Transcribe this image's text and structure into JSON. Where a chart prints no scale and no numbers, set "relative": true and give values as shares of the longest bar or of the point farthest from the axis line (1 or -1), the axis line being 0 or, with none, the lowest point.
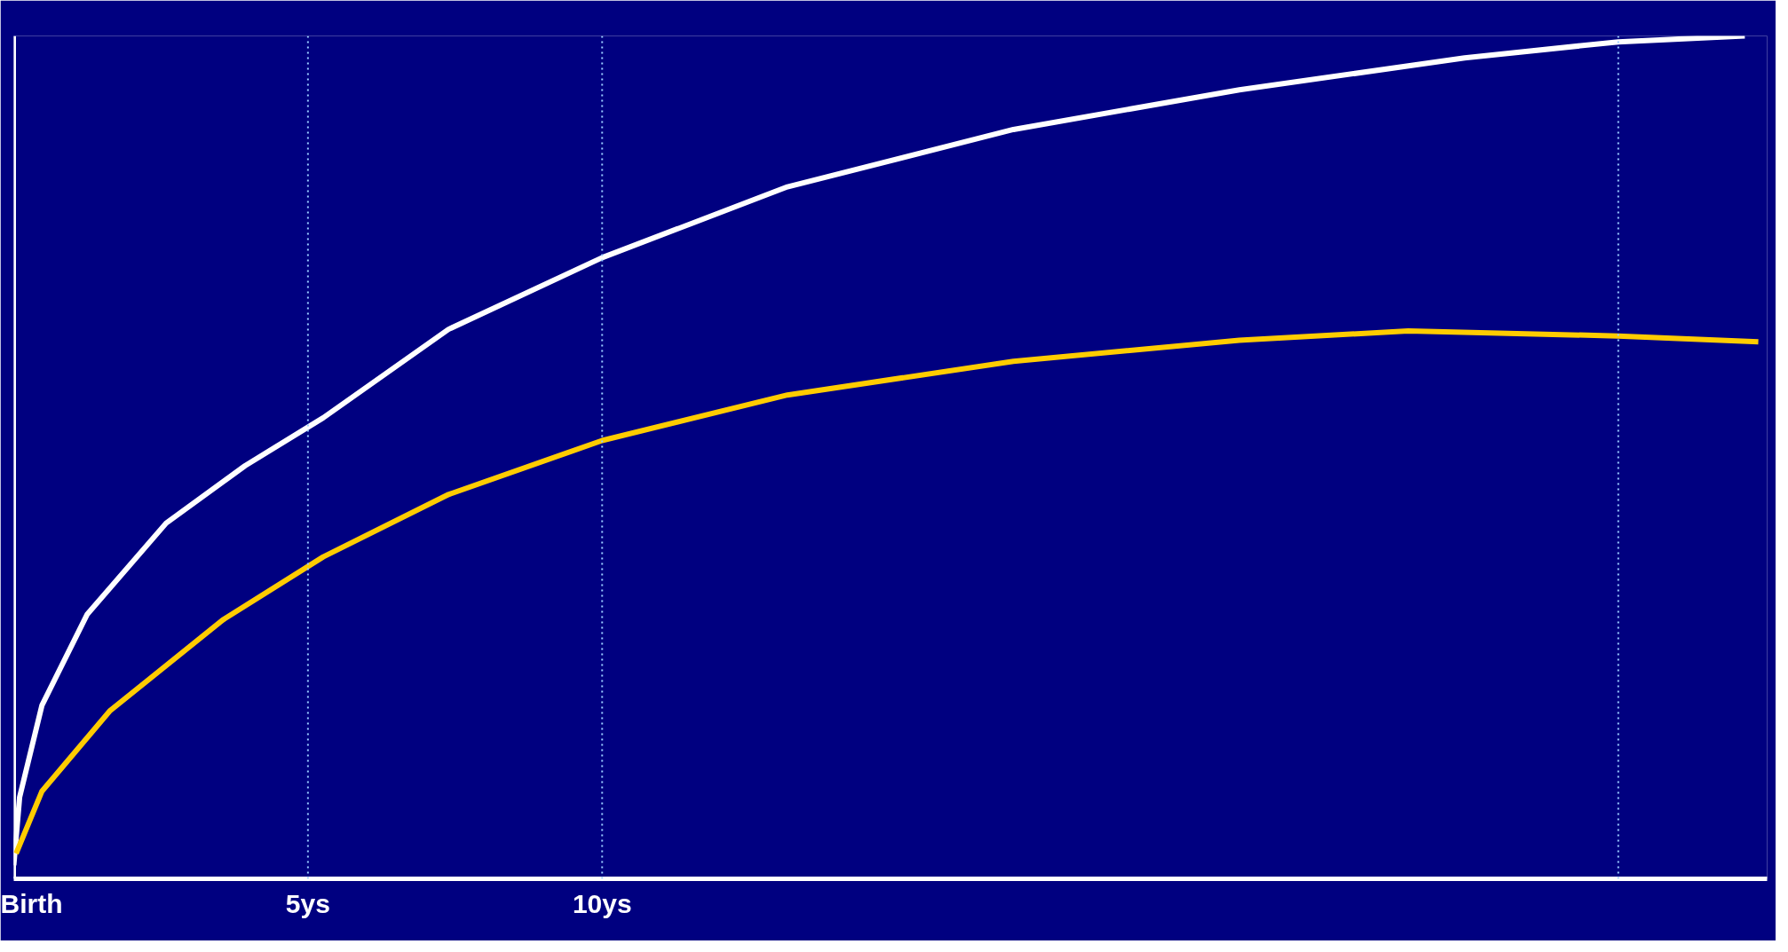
{
  "chart_data": {
    "type": "line",
    "relative": true,
    "xlim": [
      0,
      29.8
    ],
    "xticks": [
      {
        "value": 0,
        "label": "Birth"
      },
      {
        "value": 5,
        "label": "5ys"
      },
      {
        "value": 10,
        "label": "10ys"
      }
    ],
    "series": [
      {
        "color": "#ffffff",
        "x": [
          0,
          0.1,
          0.48,
          1.25,
          2.59,
          3.93,
          5.26,
          7.39,
          10.0,
          13.15,
          16.99,
          20.83,
          24.66,
          27.27,
          29.42
        ],
        "values": [
          0.016,
          0.097,
          0.206,
          0.314,
          0.422,
          0.49,
          0.547,
          0.652,
          0.737,
          0.821,
          0.889,
          0.936,
          0.974,
          0.993,
          1.0
        ]
      },
      {
        "color": "#ffcc00",
        "x": [
          0.04,
          0.48,
          1.63,
          3.55,
          5.26,
          7.39,
          10.0,
          13.15,
          16.99,
          20.83,
          23.7,
          27.27,
          29.65
        ],
        "values": [
          0.03,
          0.104,
          0.199,
          0.307,
          0.382,
          0.456,
          0.52,
          0.574,
          0.614,
          0.639,
          0.65,
          0.644,
          0.637
        ]
      }
    ],
    "ref_lines": [
      {
        "axis": "x",
        "value": 5,
        "color": "#99ccff",
        "line_style": "dotted"
      },
      {
        "axis": "x",
        "value": 10,
        "color": "#99ccff",
        "line_style": "dotted"
      },
      {
        "axis": "x",
        "value": 27.27,
        "color": "#99ccff",
        "line_style": "dotted"
      }
    ],
    "grid": false,
    "line_style": "solid",
    "marker": "none"
  }
}
